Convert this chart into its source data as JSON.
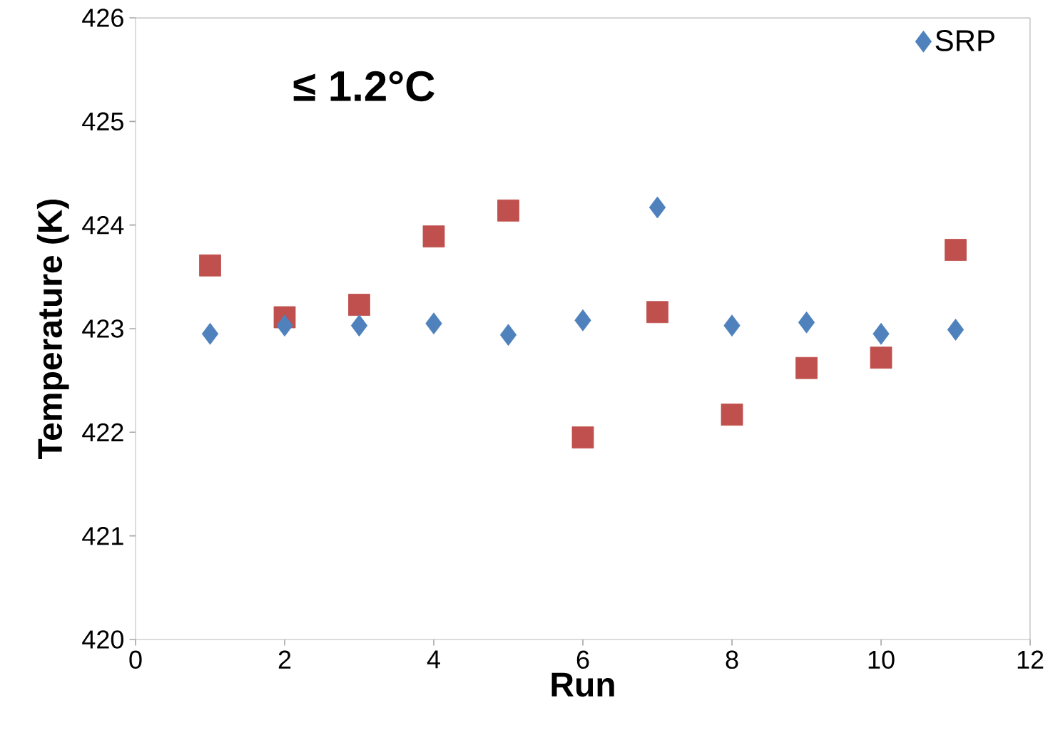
{
  "chart_data": {
    "type": "scatter",
    "xlabel": "Run",
    "ylabel": "Temperature (K)",
    "x": [
      1,
      2,
      3,
      4,
      5,
      6,
      7,
      8,
      9,
      10,
      11
    ],
    "series": [
      {
        "name": "SRP",
        "color": "#4f81bd",
        "marker": "diamond",
        "values": [
          422.95,
          423.03,
          423.03,
          423.05,
          422.94,
          423.08,
          424.17,
          423.03,
          423.06,
          422.95,
          422.99
        ]
      },
      {
        "color": "#c0504d",
        "marker": "square",
        "values": [
          423.61,
          423.11,
          423.23,
          423.89,
          424.14,
          421.95,
          423.16,
          422.17,
          422.62,
          422.72,
          423.76
        ]
      }
    ],
    "xlim": [
      0,
      12
    ],
    "ylim": [
      420,
      426
    ],
    "xticks": [
      0,
      2,
      4,
      6,
      8,
      10,
      12
    ],
    "yticks": [
      420,
      421,
      422,
      423,
      424,
      425,
      426
    ],
    "annotations": [
      "≤ 1.2°C"
    ],
    "grid": false,
    "legend": "top right"
  }
}
